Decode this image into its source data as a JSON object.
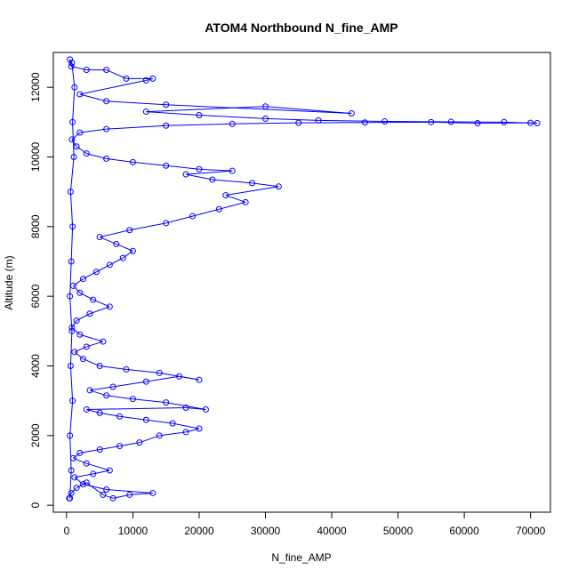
{
  "chart_data": {
    "type": "scatter",
    "title": "ATOM4 Northbound N_fine_AMP",
    "xlabel": "N_fine_AMP",
    "ylabel": "Altitude (m)",
    "xlim": [
      -2000,
      73000
    ],
    "ylim": [
      -200,
      13000
    ],
    "x_ticks": [
      0,
      10000,
      20000,
      30000,
      40000,
      50000,
      60000,
      70000
    ],
    "y_ticks": [
      0,
      2000,
      4000,
      6000,
      8000,
      10000,
      12000
    ],
    "x_tick_labels": [
      "0",
      "10000",
      "20000",
      "30000",
      "40000",
      "50000",
      "60000",
      "70000"
    ],
    "y_tick_labels": [
      "0",
      "2000",
      "4000",
      "6000",
      "8000",
      "10000",
      "12000"
    ],
    "grid": false,
    "legend": "none",
    "marker": "open-circle",
    "connected": true,
    "series": [
      {
        "color": "#0000ff",
        "points": [
          [
            400,
            200
          ],
          [
            700,
            350
          ],
          [
            1500,
            500
          ],
          [
            3000,
            650
          ],
          [
            5500,
            300
          ],
          [
            7000,
            200
          ],
          [
            9500,
            300
          ],
          [
            13000,
            350
          ],
          [
            6000,
            450
          ],
          [
            2500,
            600
          ],
          [
            1200,
            800
          ],
          [
            4000,
            900
          ],
          [
            6500,
            1000
          ],
          [
            3000,
            1200
          ],
          [
            1000,
            1350
          ],
          [
            2000,
            1500
          ],
          [
            5000,
            1600
          ],
          [
            8000,
            1700
          ],
          [
            11000,
            1800
          ],
          [
            14000,
            2000
          ],
          [
            18000,
            2100
          ],
          [
            20000,
            2200
          ],
          [
            16000,
            2350
          ],
          [
            12000,
            2450
          ],
          [
            8000,
            2550
          ],
          [
            5000,
            2650
          ],
          [
            3000,
            2750
          ],
          [
            18000,
            2800
          ],
          [
            21000,
            2750
          ],
          [
            15000,
            2950
          ],
          [
            10000,
            3050
          ],
          [
            6000,
            3150
          ],
          [
            3500,
            3300
          ],
          [
            7000,
            3400
          ],
          [
            12000,
            3550
          ],
          [
            17000,
            3700
          ],
          [
            20000,
            3600
          ],
          [
            14000,
            3800
          ],
          [
            9000,
            3900
          ],
          [
            5000,
            4000
          ],
          [
            2500,
            4200
          ],
          [
            1200,
            4400
          ],
          [
            3000,
            4550
          ],
          [
            5500,
            4700
          ],
          [
            2000,
            4900
          ],
          [
            800,
            5100
          ],
          [
            1500,
            5300
          ],
          [
            3500,
            5500
          ],
          [
            6500,
            5700
          ],
          [
            4000,
            5900
          ],
          [
            2000,
            6100
          ],
          [
            1000,
            6300
          ],
          [
            2500,
            6500
          ],
          [
            4500,
            6700
          ],
          [
            6500,
            6900
          ],
          [
            8500,
            7100
          ],
          [
            10000,
            7300
          ],
          [
            7500,
            7500
          ],
          [
            5000,
            7700
          ],
          [
            9500,
            7900
          ],
          [
            15000,
            8100
          ],
          [
            19000,
            8300
          ],
          [
            23000,
            8500
          ],
          [
            27000,
            8700
          ],
          [
            24000,
            8900
          ],
          [
            32000,
            9150
          ],
          [
            28000,
            9250
          ],
          [
            22000,
            9350
          ],
          [
            18000,
            9500
          ],
          [
            25000,
            9600
          ],
          [
            20000,
            9650
          ],
          [
            15000,
            9750
          ],
          [
            10000,
            9850
          ],
          [
            6000,
            9950
          ],
          [
            3000,
            10100
          ],
          [
            1500,
            10300
          ],
          [
            800,
            10500
          ],
          [
            2000,
            10700
          ],
          [
            6000,
            10800
          ],
          [
            15000,
            10900
          ],
          [
            25000,
            10950
          ],
          [
            35000,
            10980
          ],
          [
            45000,
            10990
          ],
          [
            55000,
            11000
          ],
          [
            62000,
            10970
          ],
          [
            70000,
            10980
          ],
          [
            71000,
            10970
          ],
          [
            66000,
            11000
          ],
          [
            58000,
            11010
          ],
          [
            48000,
            11020
          ],
          [
            38000,
            11050
          ],
          [
            30000,
            11100
          ],
          [
            20000,
            11200
          ],
          [
            12000,
            11300
          ],
          [
            30000,
            11450
          ],
          [
            43000,
            11250
          ],
          [
            15000,
            11500
          ],
          [
            6000,
            11600
          ],
          [
            2000,
            11800
          ],
          [
            12000,
            12200
          ],
          [
            13000,
            12250
          ],
          [
            9000,
            12250
          ],
          [
            6000,
            12500
          ],
          [
            3000,
            12500
          ],
          [
            700,
            12600
          ],
          [
            500,
            12800
          ],
          [
            800,
            12700
          ],
          [
            1200,
            12000
          ],
          [
            900,
            11000
          ],
          [
            1100,
            10000
          ],
          [
            600,
            9000
          ],
          [
            900,
            8000
          ],
          [
            700,
            7000
          ],
          [
            500,
            6000
          ],
          [
            800,
            5000
          ],
          [
            600,
            4000
          ],
          [
            900,
            3000
          ],
          [
            500,
            2000
          ],
          [
            700,
            1000
          ],
          [
            500,
            200
          ]
        ]
      }
    ]
  }
}
